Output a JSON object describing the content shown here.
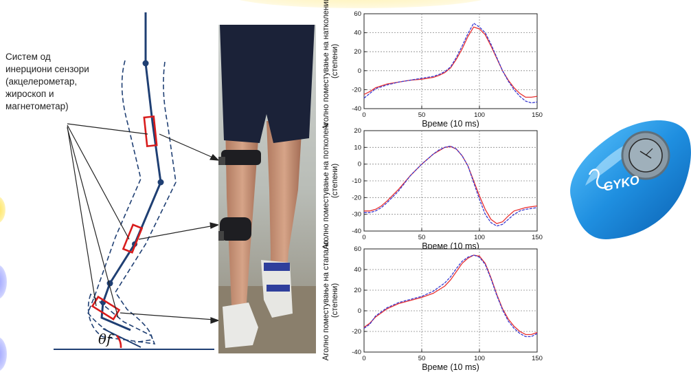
{
  "sensor_label": {
    "lines": [
      "Систем од",
      "инерциони сензори",
      "(акцелерометар,",
      "жироскоп и",
      "магнетометар)"
    ]
  },
  "angle_symbol": "θf",
  "device": {
    "logo_text": "GYKO"
  },
  "colors": {
    "series_red": "#e83030",
    "series_blue": "#3a3ad0",
    "leg_line": "#1f3f73",
    "sensor": "#d81c1c"
  },
  "chart_data": [
    {
      "type": "line",
      "ylabel": "Аголно поместување на натколеница (степени)",
      "xlabel": "Време (10 ms)",
      "xlim": [
        0,
        150
      ],
      "ylim": [
        -40,
        60
      ],
      "xticks": [
        0,
        50,
        100,
        150
      ],
      "yticks": [
        -40,
        -20,
        0,
        20,
        40,
        60
      ],
      "grid": true,
      "series": [
        {
          "color": "#e83030",
          "x": [
            0,
            5,
            10,
            20,
            30,
            40,
            50,
            60,
            65,
            70,
            75,
            80,
            85,
            90,
            95,
            100,
            105,
            110,
            115,
            120,
            125,
            130,
            135,
            140,
            145,
            150
          ],
          "y": [
            -25,
            -22,
            -18,
            -14,
            -12,
            -10,
            -9,
            -7,
            -5,
            -2,
            3,
            12,
            23,
            36,
            46,
            44,
            38,
            26,
            13,
            0,
            -10,
            -18,
            -24,
            -28,
            -28,
            -27
          ]
        },
        {
          "color": "#3a3ad0",
          "x": [
            0,
            5,
            10,
            20,
            30,
            40,
            50,
            60,
            65,
            70,
            75,
            80,
            85,
            90,
            95,
            100,
            105,
            110,
            115,
            120,
            125,
            130,
            135,
            140,
            145,
            150
          ],
          "y": [
            -29,
            -24,
            -19,
            -15,
            -12,
            -10,
            -8,
            -6,
            -4,
            -1,
            4,
            14,
            26,
            39,
            50,
            46,
            40,
            28,
            14,
            0,
            -11,
            -20,
            -27,
            -32,
            -34,
            -33
          ]
        }
      ]
    },
    {
      "type": "line",
      "ylabel": "Аголно поместување на потколеница (степени)",
      "xlabel": "Време (10 ms)",
      "xlim": [
        0,
        150
      ],
      "ylim": [
        -40,
        20
      ],
      "xticks": [
        0,
        50,
        100,
        150
      ],
      "yticks": [
        -40,
        -30,
        -20,
        -10,
        0,
        10,
        20
      ],
      "grid": true,
      "series": [
        {
          "color": "#e83030",
          "x": [
            0,
            5,
            10,
            15,
            20,
            30,
            40,
            50,
            60,
            65,
            70,
            75,
            80,
            85,
            90,
            95,
            100,
            105,
            110,
            115,
            120,
            125,
            130,
            135,
            140,
            145,
            150
          ],
          "y": [
            -28,
            -28,
            -27,
            -25,
            -22,
            -15,
            -7,
            0,
            6,
            8,
            10,
            10.5,
            9,
            5,
            -1,
            -10,
            -19,
            -27,
            -33,
            -35.5,
            -34.5,
            -31,
            -28,
            -27,
            -26,
            -25.5,
            -25
          ]
        },
        {
          "color": "#3a3ad0",
          "x": [
            0,
            5,
            10,
            15,
            20,
            30,
            40,
            50,
            60,
            65,
            70,
            75,
            80,
            85,
            90,
            95,
            100,
            105,
            110,
            115,
            120,
            125,
            130,
            135,
            140,
            145,
            150
          ],
          "y": [
            -29,
            -29,
            -28,
            -26,
            -23,
            -16,
            -7,
            0,
            6,
            8.5,
            10,
            10.8,
            9,
            5,
            -1,
            -11,
            -21,
            -30,
            -35,
            -37,
            -36,
            -33,
            -30,
            -28,
            -27,
            -26.5,
            -26
          ]
        }
      ]
    },
    {
      "type": "line",
      "ylabel": "Аголно поместување на стапало (степени)",
      "xlabel": "Време (10 ms)",
      "xlim": [
        0,
        150
      ],
      "ylim": [
        -40,
        60
      ],
      "xticks": [
        0,
        50,
        100,
        150
      ],
      "yticks": [
        -40,
        -20,
        0,
        20,
        40,
        60
      ],
      "grid": true,
      "series": [
        {
          "color": "#e83030",
          "x": [
            0,
            5,
            10,
            20,
            30,
            40,
            50,
            60,
            70,
            75,
            80,
            85,
            90,
            95,
            100,
            105,
            110,
            115,
            120,
            125,
            130,
            135,
            140,
            145,
            150
          ],
          "y": [
            -16,
            -12,
            -6,
            2,
            7,
            10,
            13,
            17,
            24,
            30,
            38,
            46,
            51,
            54,
            53,
            46,
            32,
            16,
            2,
            -8,
            -15,
            -20,
            -23,
            -23,
            -21
          ]
        },
        {
          "color": "#3a3ad0",
          "x": [
            0,
            5,
            10,
            20,
            30,
            40,
            50,
            60,
            70,
            75,
            80,
            85,
            90,
            95,
            100,
            105,
            110,
            115,
            120,
            125,
            130,
            135,
            140,
            145,
            150
          ],
          "y": [
            -17,
            -13,
            -5,
            3,
            8,
            11,
            14,
            19,
            27,
            33,
            41,
            48,
            52,
            54,
            52,
            45,
            31,
            15,
            1,
            -10,
            -17,
            -22,
            -25,
            -25,
            -22
          ]
        }
      ]
    }
  ]
}
